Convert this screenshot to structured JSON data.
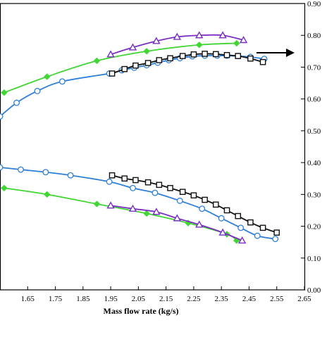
{
  "chart_data": {
    "type": "line",
    "title": "",
    "xlabel": "Mass flow rate (kg/s)",
    "ylabel_right": "",
    "xlim": [
      1.55,
      2.65
    ],
    "ylim_right": [
      0.0,
      0.9
    ],
    "x_ticks": [
      "1.65",
      "1.75",
      "1.85",
      "1.95",
      "2.05",
      "2.15",
      "2.25",
      "2.35",
      "2.45",
      "2.55",
      "2.65"
    ],
    "y_ticks_right": [
      "0.00",
      "0.10",
      "0.20",
      "0.30",
      "0.40",
      "0.50",
      "0.60",
      "0.70",
      "0.80",
      "0.90"
    ],
    "grid": false,
    "legend": "none",
    "annotation": "arrow pointing right",
    "series": [
      {
        "group": "upper",
        "color": "#2e7fd6",
        "marker": "circle",
        "points": [
          [
            1.55,
            0.545
          ],
          [
            1.61,
            0.588
          ],
          [
            1.685,
            0.625
          ],
          [
            1.775,
            0.655
          ],
          [
            1.945,
            0.68
          ],
          [
            1.99,
            0.69
          ],
          [
            2.035,
            0.698
          ],
          [
            2.08,
            0.706
          ],
          [
            2.12,
            0.714
          ],
          [
            2.16,
            0.722
          ],
          [
            2.2,
            0.728
          ],
          [
            2.245,
            0.734
          ],
          [
            2.29,
            0.736
          ],
          [
            2.335,
            0.736
          ],
          [
            2.37,
            0.736
          ],
          [
            2.41,
            0.735
          ],
          [
            2.455,
            0.732
          ],
          [
            2.505,
            0.726
          ]
        ]
      },
      {
        "group": "upper",
        "color": "#41d633",
        "marker": "diamond",
        "points": [
          [
            1.565,
            0.62
          ],
          [
            1.72,
            0.67
          ],
          [
            1.9,
            0.72
          ],
          [
            2.08,
            0.75
          ],
          [
            2.27,
            0.77
          ],
          [
            2.405,
            0.775
          ]
        ]
      },
      {
        "group": "upper",
        "color": "#7a2fc2",
        "marker": "triangle",
        "points": [
          [
            1.95,
            0.74
          ],
          [
            2.03,
            0.762
          ],
          [
            2.115,
            0.782
          ],
          [
            2.19,
            0.795
          ],
          [
            2.27,
            0.8
          ],
          [
            2.355,
            0.8
          ],
          [
            2.43,
            0.785
          ]
        ]
      },
      {
        "group": "upper",
        "color": "#111111",
        "marker": "square",
        "points": [
          [
            1.955,
            0.68
          ],
          [
            2.0,
            0.694
          ],
          [
            2.04,
            0.705
          ],
          [
            2.085,
            0.713
          ],
          [
            2.125,
            0.722
          ],
          [
            2.165,
            0.728
          ],
          [
            2.21,
            0.735
          ],
          [
            2.25,
            0.74
          ],
          [
            2.29,
            0.742
          ],
          [
            2.33,
            0.741
          ],
          [
            2.37,
            0.738
          ],
          [
            2.41,
            0.735
          ],
          [
            2.455,
            0.727
          ],
          [
            2.5,
            0.716
          ]
        ]
      },
      {
        "group": "lower",
        "color": "#2e7fd6",
        "marker": "circle",
        "points": [
          [
            1.55,
            0.385
          ],
          [
            1.625,
            0.378
          ],
          [
            1.715,
            0.37
          ],
          [
            1.805,
            0.36
          ],
          [
            1.945,
            0.34
          ],
          [
            2.03,
            0.32
          ],
          [
            2.11,
            0.305
          ],
          [
            2.2,
            0.28
          ],
          [
            2.28,
            0.255
          ],
          [
            2.35,
            0.225
          ],
          [
            2.42,
            0.195
          ],
          [
            2.48,
            0.17
          ],
          [
            2.545,
            0.16
          ]
        ]
      },
      {
        "group": "lower",
        "color": "#41d633",
        "marker": "diamond",
        "points": [
          [
            1.565,
            0.32
          ],
          [
            1.72,
            0.3
          ],
          [
            1.9,
            0.27
          ],
          [
            2.08,
            0.24
          ],
          [
            2.23,
            0.21
          ],
          [
            2.37,
            0.175
          ],
          [
            2.405,
            0.155
          ]
        ]
      },
      {
        "group": "lower",
        "color": "#7a2fc2",
        "marker": "triangle",
        "points": [
          [
            1.95,
            0.265
          ],
          [
            2.03,
            0.255
          ],
          [
            2.115,
            0.245
          ],
          [
            2.19,
            0.225
          ],
          [
            2.27,
            0.205
          ],
          [
            2.355,
            0.18
          ],
          [
            2.425,
            0.155
          ]
        ]
      },
      {
        "group": "lower",
        "color": "#111111",
        "marker": "square",
        "points": [
          [
            1.955,
            0.36
          ],
          [
            2.0,
            0.35
          ],
          [
            2.04,
            0.345
          ],
          [
            2.085,
            0.338
          ],
          [
            2.125,
            0.33
          ],
          [
            2.165,
            0.32
          ],
          [
            2.21,
            0.308
          ],
          [
            2.25,
            0.297
          ],
          [
            2.29,
            0.283
          ],
          [
            2.33,
            0.268
          ],
          [
            2.37,
            0.25
          ],
          [
            2.41,
            0.232
          ],
          [
            2.455,
            0.212
          ],
          [
            2.5,
            0.195
          ],
          [
            2.55,
            0.18
          ]
        ]
      }
    ]
  }
}
